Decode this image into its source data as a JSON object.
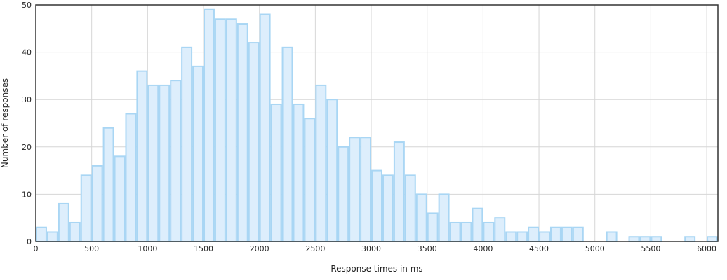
{
  "chart_data": {
    "type": "bar",
    "title": "",
    "xlabel": "Response times in ms",
    "ylabel": "Number of responses",
    "xlim": [
      0,
      6100
    ],
    "ylim": [
      0,
      50
    ],
    "bin_width": 100,
    "x_ticks": [
      0,
      500,
      1000,
      1500,
      2000,
      2500,
      3000,
      3500,
      4000,
      4500,
      5000,
      5500,
      6000
    ],
    "y_ticks": [
      0,
      10,
      20,
      30,
      40,
      50
    ],
    "grid": true,
    "legend": "none",
    "bar_fill": "#ddeefc",
    "bar_stroke": "#a9d6f4",
    "bin_starts": [
      0,
      100,
      200,
      300,
      400,
      500,
      600,
      700,
      800,
      900,
      1000,
      1100,
      1200,
      1300,
      1400,
      1500,
      1600,
      1700,
      1800,
      1900,
      2000,
      2100,
      2200,
      2300,
      2400,
      2500,
      2600,
      2700,
      2800,
      2900,
      3000,
      3100,
      3200,
      3300,
      3400,
      3500,
      3600,
      3700,
      3800,
      3900,
      4000,
      4100,
      4200,
      4300,
      4400,
      4500,
      4600,
      4700,
      4800,
      4900,
      5000,
      5100,
      5200,
      5300,
      5400,
      5500,
      5600,
      5700,
      5800,
      5900,
      6000
    ],
    "values": [
      3,
      2,
      8,
      4,
      14,
      16,
      24,
      18,
      27,
      36,
      33,
      33,
      34,
      41,
      37,
      49,
      47,
      47,
      46,
      42,
      48,
      29,
      41,
      29,
      26,
      33,
      30,
      20,
      22,
      22,
      15,
      14,
      21,
      14,
      10,
      6,
      10,
      4,
      4,
      7,
      4,
      5,
      2,
      2,
      3,
      2,
      3,
      3,
      3,
      0,
      0,
      2,
      0,
      1,
      1,
      1,
      0,
      0,
      1,
      0,
      1
    ]
  }
}
